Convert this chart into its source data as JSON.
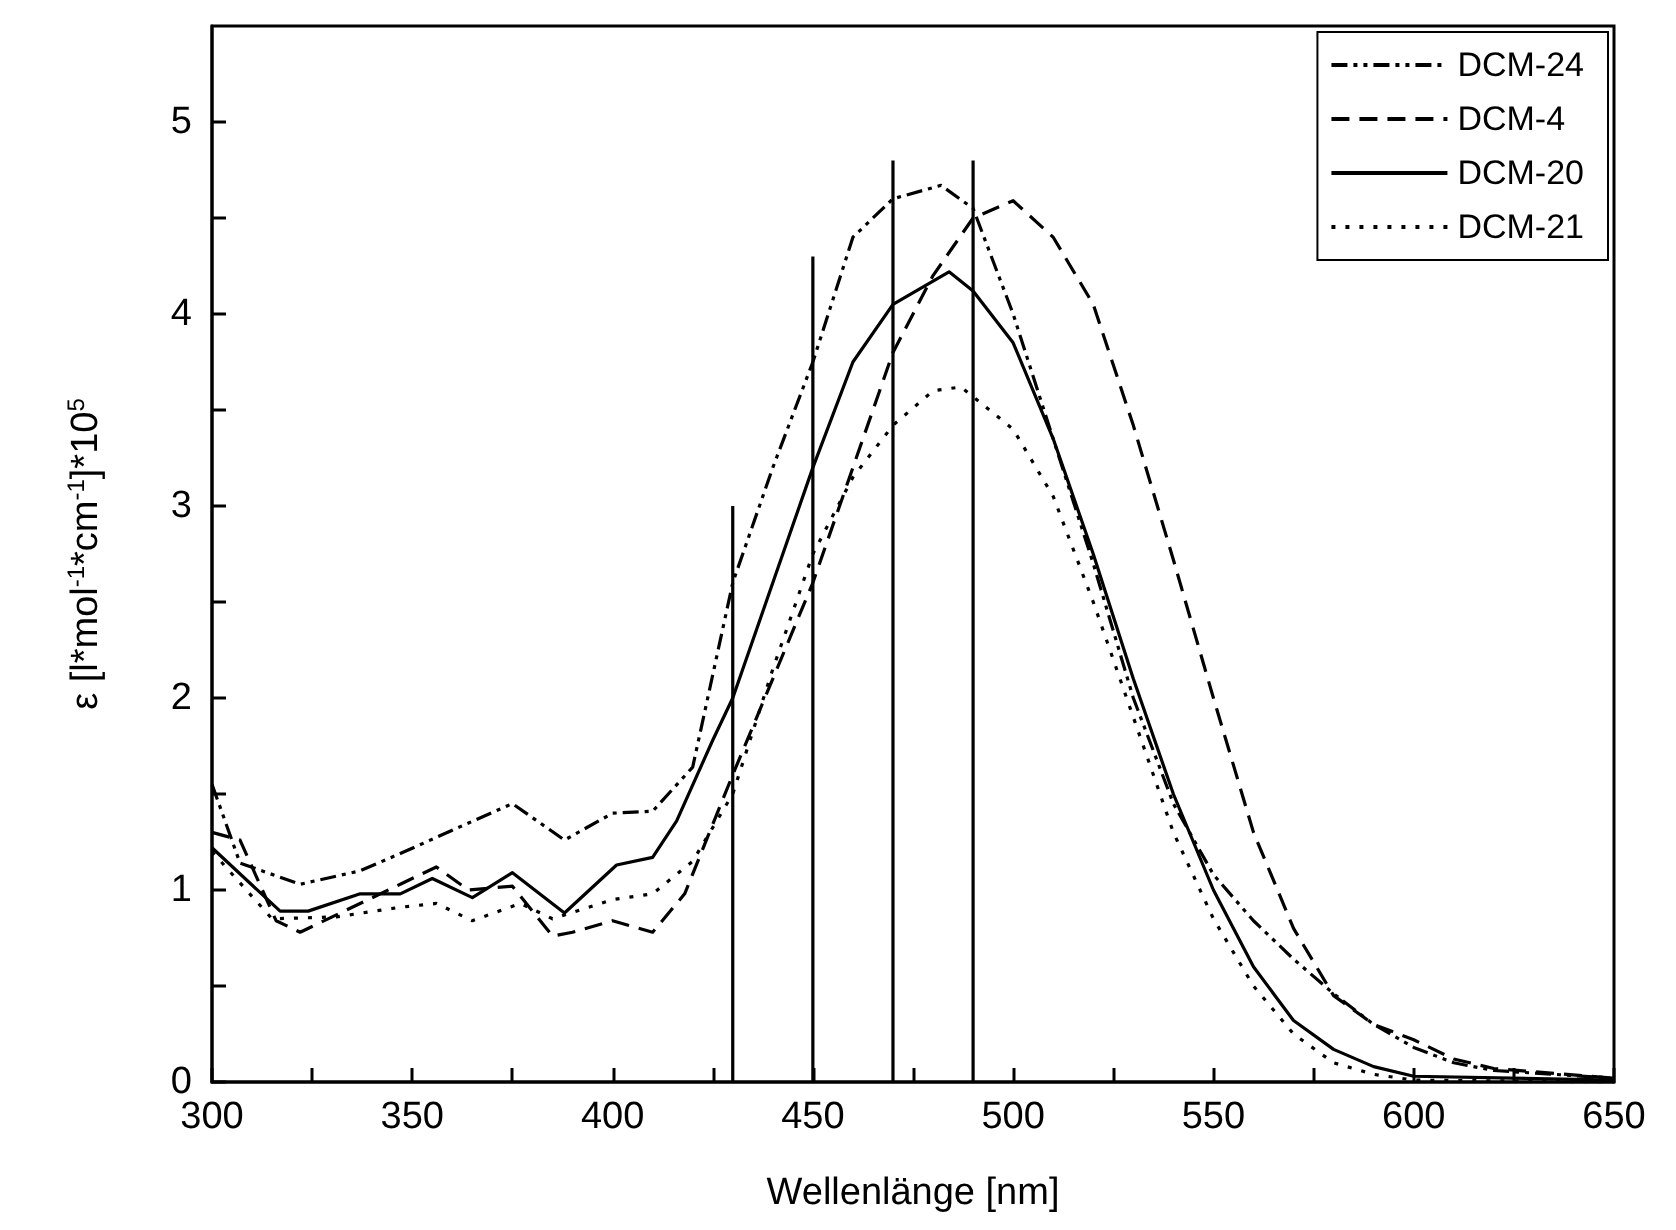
{
  "chart_data": {
    "type": "line",
    "xlabel": "Wellenlänge [nm]",
    "ylabel": "ε [l*mol$^{-1}$*cm$^{-1}$]*10$^{5}$",
    "xlim": [
      300,
      650
    ],
    "xticks": [
      300,
      {
        "value": 325,
        "label": null
      },
      350,
      {
        "value": 375,
        "label": null
      },
      400,
      {
        "value": 425,
        "label": null
      },
      450,
      {
        "value": 475,
        "label": null
      },
      500,
      {
        "value": 525,
        "label": null
      },
      550,
      {
        "value": 575,
        "label": null
      },
      600,
      {
        "value": 625,
        "label": null
      },
      650
    ],
    "ylim": [
      0,
      5.5
    ],
    "yticks": [
      0,
      {
        "value": 0.5,
        "label": null
      },
      1,
      {
        "value": 1.5,
        "label": null
      },
      2,
      {
        "value": 2.5,
        "label": null
      },
      3,
      {
        "value": 3.5,
        "label": null
      },
      4,
      {
        "value": 4.5,
        "label": null
      },
      5
    ],
    "grid": false,
    "legend": "top right",
    "marker": "none",
    "series": [
      {
        "name": "DCM-24",
        "color": "#000000",
        "line_style": "dashdotdot",
        "x": [
          300,
          307,
          322,
          337,
          347,
          362,
          375,
          388,
          400,
          410,
          420,
          430,
          440,
          450,
          460,
          470,
          482,
          490,
          500,
          510,
          520,
          530,
          540,
          550,
          560,
          570,
          580,
          590,
          600,
          610,
          620,
          650
        ],
        "values": [
          1.55,
          1.14,
          1.03,
          1.1,
          1.19,
          1.33,
          1.45,
          1.26,
          1.4,
          1.41,
          1.64,
          2.6,
          3.2,
          3.75,
          4.4,
          4.6,
          4.67,
          4.55,
          4.0,
          3.35,
          2.7,
          2.0,
          1.45,
          1.08,
          0.84,
          0.64,
          0.46,
          0.3,
          0.18,
          0.1,
          0.06,
          0.02
        ]
      },
      {
        "name": "DCM-4",
        "color": "#000000",
        "line_style": "dashed",
        "x": [
          300,
          307,
          316,
          322,
          335,
          347,
          356,
          364,
          375,
          385,
          390,
          400,
          410,
          418,
          430,
          440,
          450,
          460,
          470,
          480,
          490,
          500,
          510,
          520,
          530,
          540,
          550,
          560,
          570,
          580,
          590,
          600,
          610,
          620,
          650
        ],
        "values": [
          1.3,
          1.26,
          0.84,
          0.78,
          0.91,
          1.03,
          1.12,
          1.0,
          1.02,
          0.76,
          0.78,
          0.84,
          0.78,
          0.98,
          1.6,
          2.1,
          2.6,
          3.2,
          3.8,
          4.2,
          4.5,
          4.59,
          4.4,
          4.05,
          3.42,
          2.72,
          2.0,
          1.3,
          0.8,
          0.45,
          0.3,
          0.22,
          0.12,
          0.07,
          0.02
        ]
      },
      {
        "name": "DCM-20",
        "color": "#000000",
        "line_style": "solid",
        "x": [
          300,
          317,
          324,
          337,
          347,
          355,
          365,
          375,
          388,
          401,
          410,
          416,
          425,
          430,
          440,
          450,
          460,
          470,
          484,
          490,
          500,
          510,
          520,
          530,
          540,
          550,
          560,
          570,
          580,
          590,
          600,
          650
        ],
        "values": [
          1.22,
          0.89,
          0.89,
          0.98,
          0.98,
          1.06,
          0.96,
          1.09,
          0.88,
          1.13,
          1.17,
          1.36,
          1.78,
          2.0,
          2.6,
          3.2,
          3.75,
          4.05,
          4.22,
          4.12,
          3.85,
          3.35,
          2.75,
          2.1,
          1.5,
          1.0,
          0.6,
          0.32,
          0.17,
          0.08,
          0.03,
          0.01
        ]
      },
      {
        "name": "DCM-21",
        "color": "#000000",
        "line_style": "dotted",
        "x": [
          300,
          315,
          331,
          347,
          356,
          365,
          377,
          385,
          400,
          410,
          420,
          430,
          440,
          450,
          460,
          470,
          480,
          487,
          500,
          510,
          520,
          530,
          540,
          550,
          560,
          570,
          580,
          590,
          600,
          650
        ],
        "values": [
          1.2,
          0.85,
          0.86,
          0.91,
          0.93,
          0.84,
          0.93,
          0.85,
          0.95,
          0.98,
          1.15,
          1.5,
          2.15,
          2.75,
          3.15,
          3.42,
          3.6,
          3.62,
          3.4,
          3.05,
          2.5,
          1.9,
          1.3,
          0.85,
          0.5,
          0.25,
          0.1,
          0.04,
          0.01,
          0.0
        ]
      },
      {
        "type": "bar",
        "color": "#000000",
        "x": [
          430,
          450,
          470,
          490
        ],
        "values": [
          3.0,
          4.3,
          4.8,
          4.8
        ]
      }
    ]
  }
}
